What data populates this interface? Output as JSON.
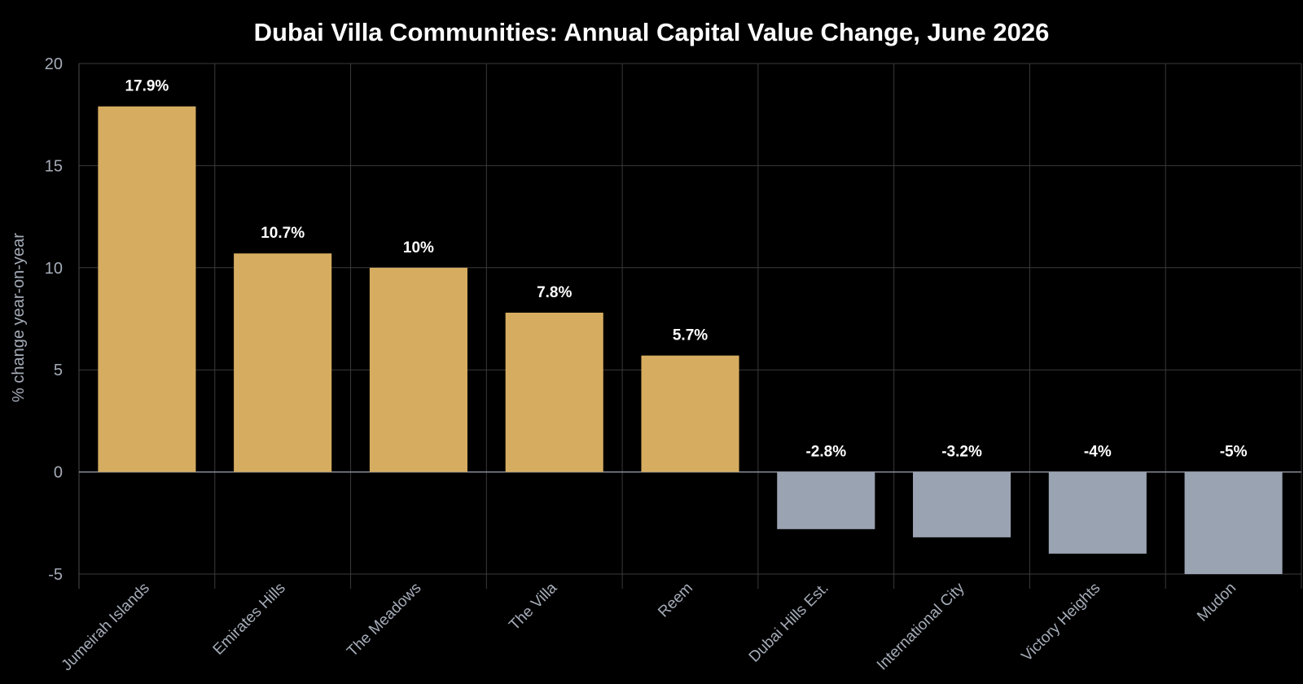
{
  "chart_data": {
    "type": "bar",
    "title": "Dubai Villa Communities: Annual Capital Value Change, June 2026",
    "xlabel": "",
    "ylabel": "% change year-on-year",
    "ylim": [
      -5,
      20
    ],
    "yticks": [
      -5,
      0,
      5,
      10,
      15,
      20
    ],
    "grid": true,
    "categories": [
      "Jumeirah Islands",
      "Emirates Hills",
      "The Meadows",
      "The Villa",
      "Reem",
      "Dubai Hills Est.",
      "International City",
      "Victory Heights",
      "Mudon"
    ],
    "values": [
      17.9,
      10.7,
      10,
      7.8,
      5.7,
      -2.8,
      -3.2,
      -4,
      -5
    ],
    "data_labels": [
      "17.9%",
      "10.7%",
      "10%",
      "7.8%",
      "5.7%",
      "-2.8%",
      "-3.2%",
      "-4%",
      "-5%"
    ],
    "colors": {
      "positive": "#d6ad60",
      "negative": "#9aa3b1",
      "background": "#000000"
    }
  }
}
